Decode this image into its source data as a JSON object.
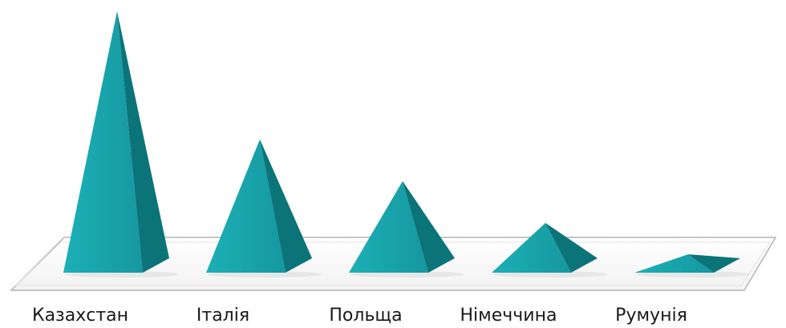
{
  "chart_data": {
    "type": "bar",
    "style": "3d-pyramid",
    "title": "",
    "xlabel": "",
    "ylabel": "",
    "categories": [
      "Казахстан",
      "Італія",
      "Польща",
      "Німеччина",
      "Румунія"
    ],
    "values": [
      100,
      51,
      35,
      19,
      7
    ],
    "ylim": [
      0,
      100
    ],
    "grid": false,
    "legend": "none",
    "colors": {
      "front": "#1aa7ad",
      "side": "#0b7478",
      "floor_edge": "#b4b4b4",
      "floor_fill": "#ffffff",
      "label": "#1a1a1a"
    }
  }
}
